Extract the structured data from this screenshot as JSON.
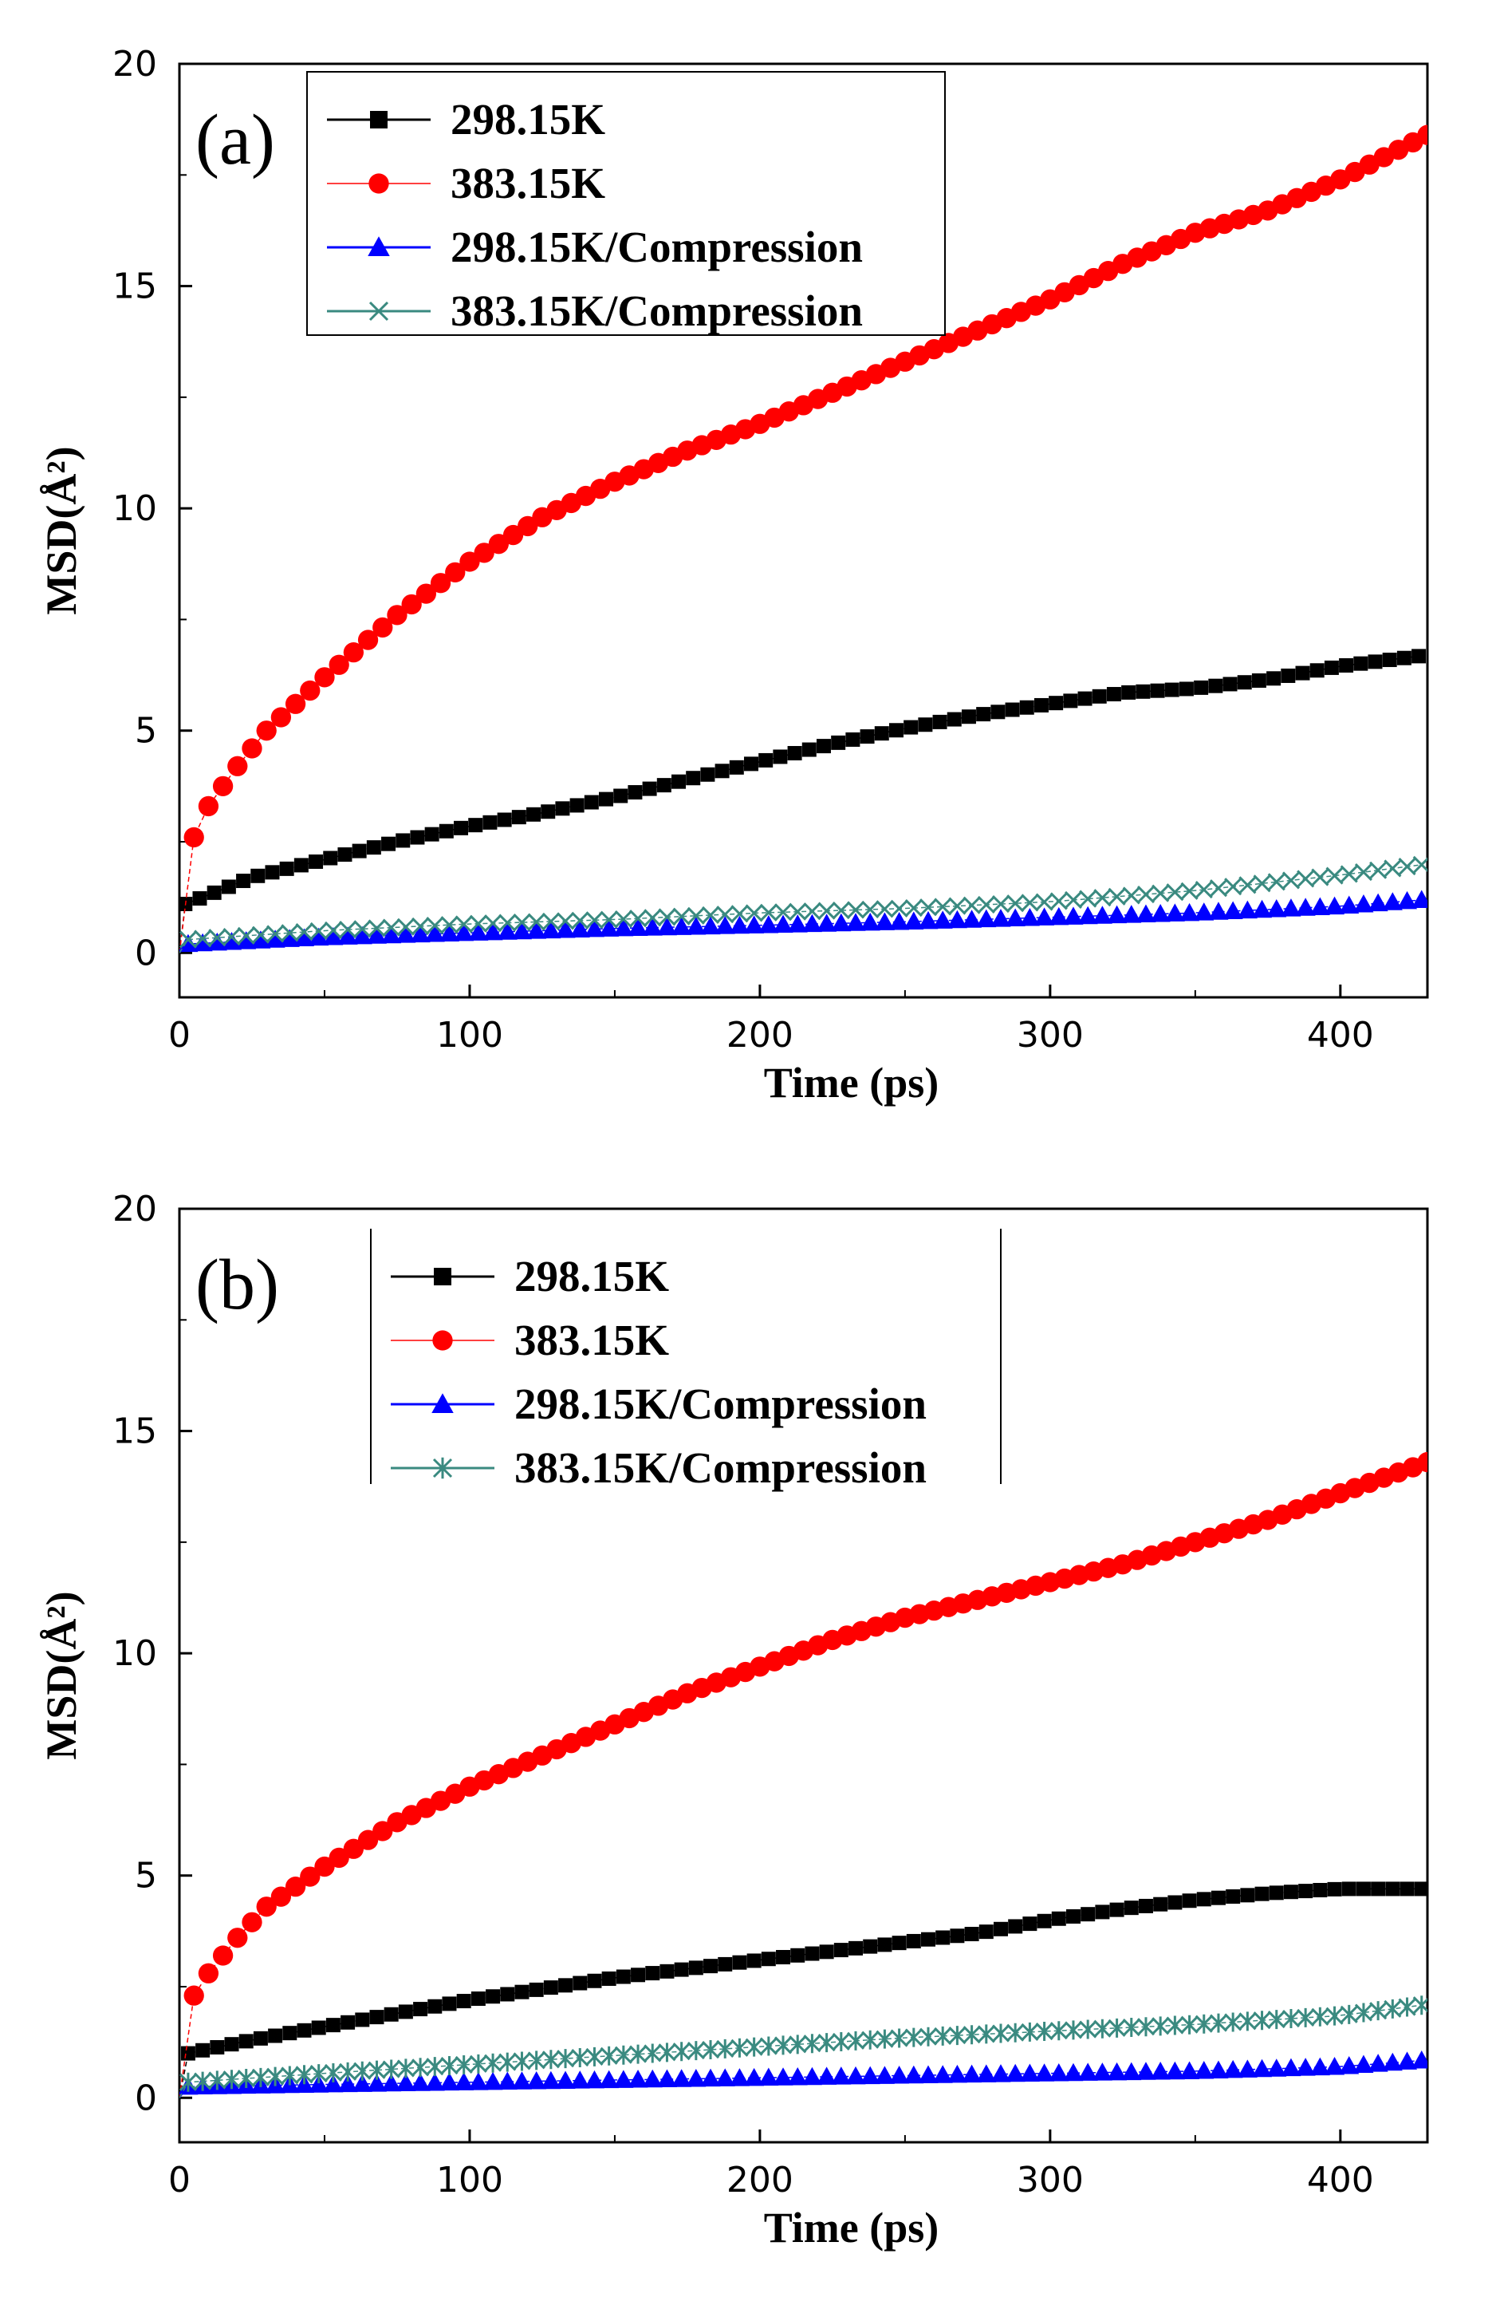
{
  "chart_data": [
    {
      "type": "scatter",
      "panel_label": "(a)",
      "xlabel": "Time (ps)",
      "ylabel": "MSD(Å²)",
      "xlim": [
        0,
        430
      ],
      "ylim": [
        -1,
        20
      ],
      "xticks": [
        0,
        100,
        200,
        300,
        400
      ],
      "yticks": [
        0,
        5,
        10,
        15,
        20
      ],
      "legend_position": "top-left",
      "legend_frame": "box",
      "series": [
        {
          "name": "298.15K",
          "color": "#000000",
          "marker": "square",
          "points": [
            [
              0,
              0
            ],
            [
              2,
              1.1
            ],
            [
              10,
              1.3
            ],
            [
              25,
              1.7
            ],
            [
              50,
              2.1
            ],
            [
              75,
              2.5
            ],
            [
              100,
              2.85
            ],
            [
              125,
              3.15
            ],
            [
              150,
              3.5
            ],
            [
              175,
              3.9
            ],
            [
              200,
              4.3
            ],
            [
              225,
              4.7
            ],
            [
              250,
              5.05
            ],
            [
              275,
              5.35
            ],
            [
              300,
              5.6
            ],
            [
              325,
              5.85
            ],
            [
              350,
              5.95
            ],
            [
              375,
              6.15
            ],
            [
              400,
              6.45
            ],
            [
              430,
              6.7
            ]
          ]
        },
        {
          "name": "383.15K",
          "color": "#ff0000",
          "marker": "circle",
          "points": [
            [
              0,
              0
            ],
            [
              5,
              2.6
            ],
            [
              10,
              3.3
            ],
            [
              20,
              4.2
            ],
            [
              30,
              5.0
            ],
            [
              50,
              6.2
            ],
            [
              75,
              7.6
            ],
            [
              100,
              8.8
            ],
            [
              125,
              9.8
            ],
            [
              150,
              10.6
            ],
            [
              175,
              11.3
            ],
            [
              200,
              11.9
            ],
            [
              225,
              12.6
            ],
            [
              250,
              13.3
            ],
            [
              275,
              14.0
            ],
            [
              300,
              14.7
            ],
            [
              325,
              15.5
            ],
            [
              350,
              16.2
            ],
            [
              375,
              16.7
            ],
            [
              400,
              17.4
            ],
            [
              430,
              18.4
            ]
          ]
        },
        {
          "name": "298.15K/Compression",
          "color": "#0000ff",
          "marker": "triangle",
          "points": [
            [
              0,
              0
            ],
            [
              3,
              0.2
            ],
            [
              50,
              0.35
            ],
            [
              100,
              0.45
            ],
            [
              150,
              0.55
            ],
            [
              200,
              0.62
            ],
            [
              250,
              0.7
            ],
            [
              300,
              0.8
            ],
            [
              350,
              0.9
            ],
            [
              400,
              1.05
            ],
            [
              430,
              1.2
            ]
          ]
        },
        {
          "name": "383.15K/Compression",
          "color": "#3a8a80",
          "marker": "x",
          "points": [
            [
              0,
              0
            ],
            [
              3,
              0.3
            ],
            [
              50,
              0.5
            ],
            [
              100,
              0.65
            ],
            [
              150,
              0.75
            ],
            [
              200,
              0.9
            ],
            [
              250,
              1.0
            ],
            [
              300,
              1.15
            ],
            [
              350,
              1.4
            ],
            [
              400,
              1.75
            ],
            [
              430,
              2.0
            ]
          ]
        }
      ]
    },
    {
      "type": "scatter",
      "panel_label": "(b)",
      "xlabel": "Time (ps)",
      "ylabel": "MSD(Å²)",
      "xlim": [
        0,
        430
      ],
      "ylim": [
        -1,
        20
      ],
      "xticks": [
        0,
        100,
        200,
        300,
        400
      ],
      "yticks": [
        0,
        5,
        10,
        15,
        20
      ],
      "legend_position": "top-left",
      "legend_frame": "vertical-bars",
      "series": [
        {
          "name": "298.15K",
          "color": "#000000",
          "marker": "square",
          "points": [
            [
              0,
              0
            ],
            [
              3,
              1.0
            ],
            [
              25,
              1.3
            ],
            [
              50,
              1.6
            ],
            [
              75,
              1.9
            ],
            [
              100,
              2.2
            ],
            [
              125,
              2.45
            ],
            [
              150,
              2.7
            ],
            [
              175,
              2.9
            ],
            [
              200,
              3.1
            ],
            [
              225,
              3.3
            ],
            [
              250,
              3.5
            ],
            [
              275,
              3.7
            ],
            [
              300,
              4.0
            ],
            [
              325,
              4.25
            ],
            [
              350,
              4.45
            ],
            [
              375,
              4.6
            ],
            [
              400,
              4.7
            ],
            [
              430,
              4.7
            ]
          ]
        },
        {
          "name": "383.15K",
          "color": "#ff0000",
          "marker": "circle",
          "points": [
            [
              0,
              0
            ],
            [
              5,
              2.3
            ],
            [
              10,
              2.8
            ],
            [
              20,
              3.6
            ],
            [
              30,
              4.3
            ],
            [
              50,
              5.2
            ],
            [
              75,
              6.2
            ],
            [
              100,
              7.0
            ],
            [
              125,
              7.7
            ],
            [
              150,
              8.4
            ],
            [
              175,
              9.1
            ],
            [
              200,
              9.7
            ],
            [
              225,
              10.3
            ],
            [
              250,
              10.8
            ],
            [
              275,
              11.2
            ],
            [
              300,
              11.6
            ],
            [
              325,
              12.0
            ],
            [
              350,
              12.5
            ],
            [
              375,
              13.0
            ],
            [
              400,
              13.6
            ],
            [
              430,
              14.3
            ]
          ]
        },
        {
          "name": "298.15K/Compression",
          "color": "#0000ff",
          "marker": "triangle",
          "points": [
            [
              0,
              0
            ],
            [
              3,
              0.25
            ],
            [
              50,
              0.3
            ],
            [
              100,
              0.35
            ],
            [
              150,
              0.4
            ],
            [
              200,
              0.45
            ],
            [
              250,
              0.5
            ],
            [
              300,
              0.55
            ],
            [
              350,
              0.6
            ],
            [
              400,
              0.7
            ],
            [
              430,
              0.85
            ]
          ]
        },
        {
          "name": "383.15K/Compression",
          "color": "#3a8a80",
          "marker": "asterisk",
          "points": [
            [
              0,
              0
            ],
            [
              3,
              0.35
            ],
            [
              50,
              0.55
            ],
            [
              100,
              0.75
            ],
            [
              150,
              0.95
            ],
            [
              200,
              1.15
            ],
            [
              250,
              1.35
            ],
            [
              300,
              1.5
            ],
            [
              350,
              1.65
            ],
            [
              400,
              1.85
            ],
            [
              430,
              2.1
            ]
          ]
        }
      ]
    }
  ]
}
